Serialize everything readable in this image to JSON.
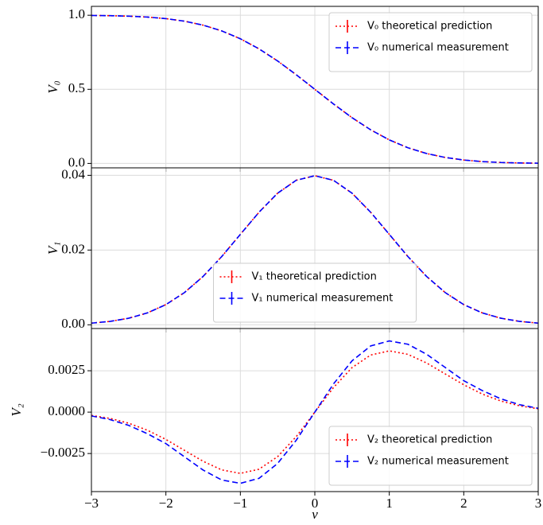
{
  "chart_data": [
    {
      "type": "line",
      "ylabel": "V₀",
      "x": [
        -3,
        -2.75,
        -2.5,
        -2.25,
        -2,
        -1.75,
        -1.5,
        -1.25,
        -1,
        -0.75,
        -0.5,
        -0.25,
        0,
        0.25,
        0.5,
        0.75,
        1,
        1.25,
        1.5,
        1.75,
        2,
        2.25,
        2.5,
        2.75,
        3
      ],
      "series": [
        {
          "name": "V₀ theoretical prediction",
          "color": "#ff0000",
          "linestyle": "dotted",
          "values": [
            0.9987,
            0.997,
            0.9938,
            0.9878,
            0.9772,
            0.9599,
            0.9332,
            0.8944,
            0.8413,
            0.7734,
            0.6915,
            0.5987,
            0.5,
            0.4013,
            0.3085,
            0.2266,
            0.1587,
            0.1056,
            0.0668,
            0.0401,
            0.0228,
            0.0122,
            0.0062,
            0.003,
            0.0013
          ]
        },
        {
          "name": "V₀ numerical measurement",
          "color": "#0000ff",
          "linestyle": "dashed",
          "values": [
            0.9987,
            0.997,
            0.9938,
            0.9878,
            0.9772,
            0.9599,
            0.9332,
            0.8944,
            0.8413,
            0.7734,
            0.6915,
            0.5987,
            0.5,
            0.4013,
            0.3085,
            0.2266,
            0.1587,
            0.1056,
            0.0668,
            0.0401,
            0.0228,
            0.0122,
            0.0062,
            0.003,
            0.0013
          ]
        }
      ],
      "xlim": [
        -3,
        3
      ],
      "xticks": [
        -3,
        -2,
        -1,
        0,
        1,
        2,
        3
      ],
      "ylim": [
        -0.03,
        1.06
      ],
      "yticks": [
        {
          "value": 0,
          "label": "0.0"
        },
        {
          "value": 0.5,
          "label": "0.5"
        },
        {
          "value": 1,
          "label": "1.0"
        }
      ],
      "grid": true,
      "legend": "upper right"
    },
    {
      "type": "line",
      "ylabel": "V₁",
      "x": [
        -3,
        -2.75,
        -2.5,
        -2.25,
        -2,
        -1.75,
        -1.5,
        -1.25,
        -1,
        -0.75,
        -0.5,
        -0.25,
        0,
        0.25,
        0.5,
        0.75,
        1,
        1.25,
        1.5,
        1.75,
        2,
        2.25,
        2.5,
        2.75,
        3
      ],
      "series": [
        {
          "name": "V₁ theoretical prediction",
          "color": "#ff0000",
          "linestyle": "dotted",
          "values": [
            0.00044,
            0.00091,
            0.00175,
            0.00317,
            0.0054,
            0.00863,
            0.01295,
            0.01826,
            0.0242,
            0.03011,
            0.03521,
            0.03867,
            0.03989,
            0.03867,
            0.03521,
            0.03011,
            0.0242,
            0.01826,
            0.01295,
            0.00863,
            0.0054,
            0.00317,
            0.00175,
            0.00091,
            0.00044
          ]
        },
        {
          "name": "V₁ numerical measurement",
          "color": "#0000ff",
          "linestyle": "dashed",
          "values": [
            0.00044,
            0.00091,
            0.00175,
            0.00317,
            0.0054,
            0.00863,
            0.01295,
            0.01826,
            0.0242,
            0.03011,
            0.03521,
            0.03867,
            0.03989,
            0.03867,
            0.03521,
            0.03011,
            0.0242,
            0.01826,
            0.01295,
            0.00863,
            0.0054,
            0.00317,
            0.00175,
            0.00091,
            0.00044
          ]
        }
      ],
      "xlim": [
        -3,
        3
      ],
      "xticks": [
        -3,
        -2,
        -1,
        0,
        1,
        2,
        3
      ],
      "ylim": [
        -0.001,
        0.042
      ],
      "yticks": [
        {
          "value": 0,
          "label": "0.00"
        },
        {
          "value": 0.02,
          "label": "0.02"
        },
        {
          "value": 0.04,
          "label": "0.04"
        }
      ],
      "grid": true,
      "legend": "lower center"
    },
    {
      "type": "line",
      "ylabel": "V₂",
      "xlabel": "ν",
      "x": [
        -3,
        -2.75,
        -2.5,
        -2.25,
        -2,
        -1.75,
        -1.5,
        -1.25,
        -1,
        -0.75,
        -0.5,
        -0.25,
        0,
        0.25,
        0.5,
        0.75,
        1,
        1.25,
        1.5,
        1.75,
        2,
        2.25,
        2.5,
        2.75,
        3
      ],
      "series": [
        {
          "name": "V₂ theoretical prediction",
          "color": "#ff0000",
          "linestyle": "dotted",
          "values": [
            -0.0002,
            -0.00038,
            -0.00067,
            -0.00109,
            -0.00165,
            -0.00231,
            -0.00297,
            -0.00349,
            -0.0037,
            -0.00345,
            -0.00269,
            -0.00148,
            0,
            0.00148,
            0.00269,
            0.00345,
            0.0037,
            0.00349,
            0.00297,
            0.00231,
            0.00165,
            0.00109,
            0.00067,
            0.00038,
            0.0002
          ]
        },
        {
          "name": "V₂ numerical measurement",
          "color": "#0000ff",
          "linestyle": "dashed",
          "values": [
            -0.00023,
            -0.00045,
            -0.0008,
            -0.0013,
            -0.0019,
            -0.0027,
            -0.0035,
            -0.0041,
            -0.0043,
            -0.004,
            -0.0031,
            -0.0017,
            0,
            0.0017,
            0.0031,
            0.004,
            0.0043,
            0.0041,
            0.0035,
            0.0027,
            0.0019,
            0.0013,
            0.0008,
            0.00045,
            0.00023
          ]
        }
      ],
      "xlim": [
        -3,
        3
      ],
      "xticks": [
        {
          "value": -3,
          "label": "−3"
        },
        {
          "value": -2,
          "label": "−2"
        },
        {
          "value": -1,
          "label": "−1"
        },
        0,
        1,
        2,
        3
      ],
      "ylim": [
        -0.0048,
        0.00505
      ],
      "yticks": [
        {
          "value": -0.0025,
          "label": "−0.0025"
        },
        {
          "value": 0,
          "label": "0.0000"
        },
        {
          "value": 0.0025,
          "label": "0.0025"
        }
      ],
      "grid": true,
      "legend": "lower right"
    }
  ]
}
